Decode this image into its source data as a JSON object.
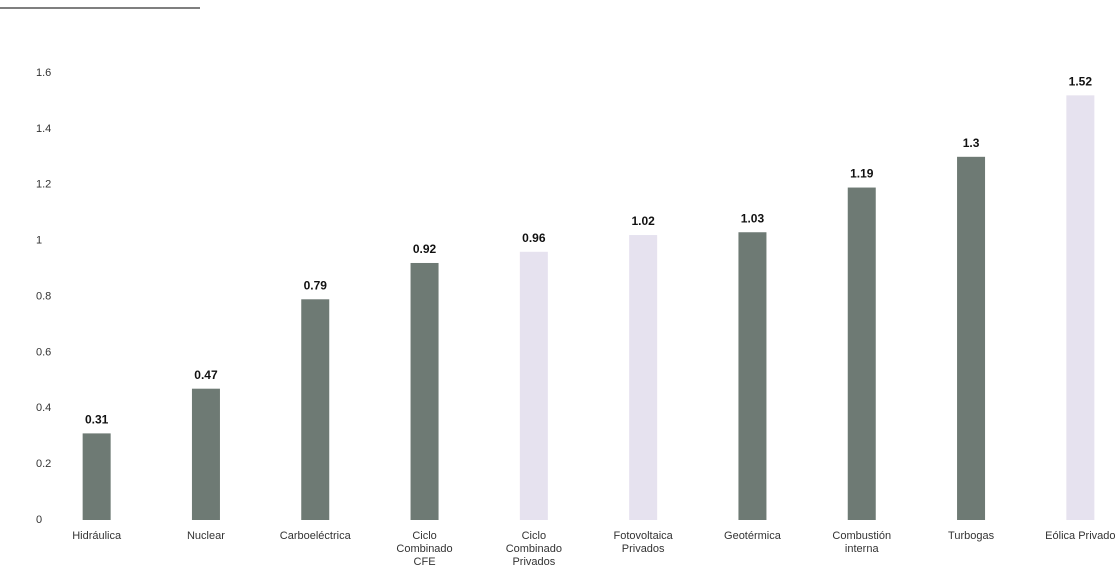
{
  "chart_data": {
    "type": "bar",
    "categories": [
      "Hidráulica",
      "Nuclear",
      "Carboeléctrica",
      "Ciclo\nCombinado\nCFE",
      "Ciclo\nCombinado\nPrivados",
      "Fotovoltaica\nPrivados",
      "Geotérmica",
      "Combustión\ninterna",
      "Turbogas",
      "Eólica Privado"
    ],
    "values": [
      0.31,
      0.47,
      0.79,
      0.92,
      0.96,
      1.02,
      1.03,
      1.19,
      1.3,
      1.52
    ],
    "colors": [
      "#6e7a74",
      "#6e7a74",
      "#6e7a74",
      "#6e7a74",
      "#e6e2ef",
      "#e6e2ef",
      "#6e7a74",
      "#6e7a74",
      "#6e7a74",
      "#e6e2ef"
    ],
    "ylim": [
      0,
      1.6
    ],
    "yticks": [
      0,
      0.2,
      0.4,
      0.6,
      0.8,
      1,
      1.2,
      1.4,
      1.6
    ],
    "grid": false
  }
}
